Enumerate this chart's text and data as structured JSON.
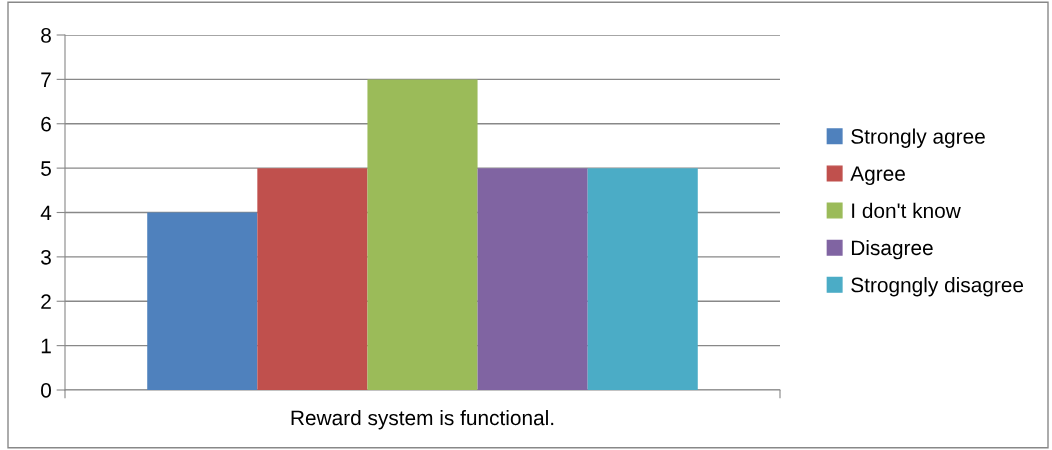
{
  "chart_data": {
    "type": "bar",
    "categories": [
      "Reward system is functional."
    ],
    "series": [
      {
        "name": "Strongly agree",
        "color": "#4f81bd",
        "values": [
          4
        ]
      },
      {
        "name": "Agree",
        "color": "#c0504d",
        "values": [
          5
        ]
      },
      {
        "name": "I don't know",
        "color": "#9bbb59",
        "values": [
          7
        ]
      },
      {
        "name": "Disagree",
        "color": "#8064a2",
        "values": [
          5
        ]
      },
      {
        "name": "Strogngly disagree",
        "color": "#4bacc6",
        "values": [
          5
        ]
      }
    ],
    "ylim": [
      0,
      8
    ],
    "yticks": [
      0,
      1,
      2,
      3,
      4,
      5,
      6,
      7,
      8
    ],
    "grid": "y",
    "legend": "right"
  }
}
